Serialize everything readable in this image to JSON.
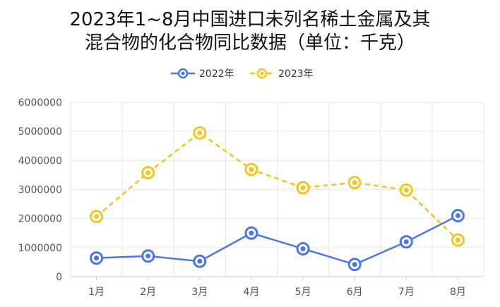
{
  "chart_data": {
    "type": "line",
    "title_line1": "2023年1~8月中国进口未列名稀土金属及其",
    "title_line2": "混合物的化合物同比数据（单位：千克）",
    "categories": [
      "1月",
      "2月",
      "3月",
      "4月",
      "5月",
      "6月",
      "7月",
      "8月"
    ],
    "ylim": [
      0,
      6000000
    ],
    "yticks": [
      "0",
      "1000000",
      "2000000",
      "3000000",
      "4000000",
      "5000000",
      "6000000"
    ],
    "grid": true,
    "legend_position": "top-center",
    "series": [
      {
        "name": "2022年",
        "color": "#4a77e8",
        "dash": "solid",
        "values": [
          640000,
          710000,
          530000,
          1500000,
          960000,
          420000,
          1200000,
          2100000
        ]
      },
      {
        "name": "2023年",
        "color": "#f5c518",
        "dash": "dashed",
        "values": [
          2070000,
          3580000,
          4950000,
          3690000,
          3060000,
          3240000,
          2980000,
          1260000
        ]
      }
    ]
  }
}
